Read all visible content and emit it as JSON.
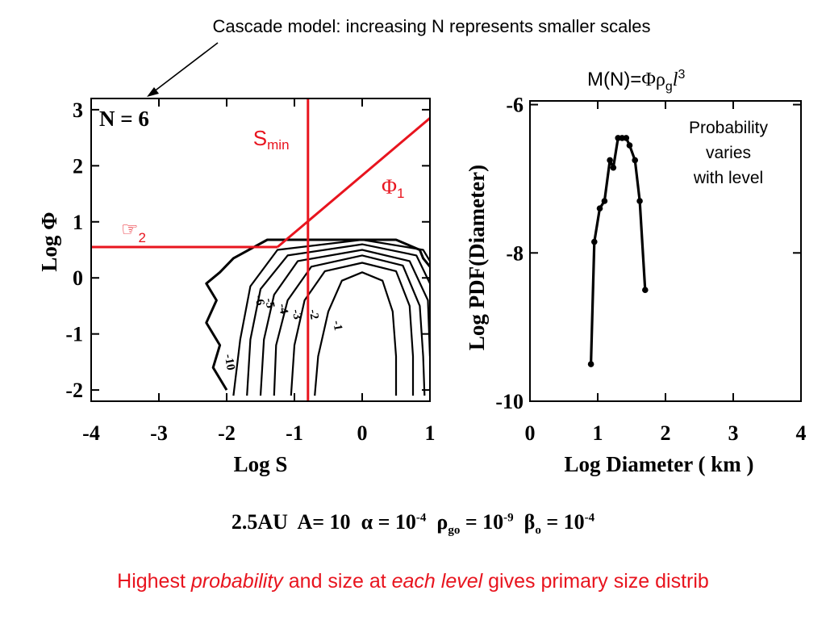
{
  "header": {
    "title": "Cascade model: increasing N represents smaller scales"
  },
  "formula": {
    "lhs": "M(N)=",
    "phi": "Φ",
    "rho": "ρ",
    "sub_g": "g",
    "ell": "l",
    "sup_3": "3"
  },
  "note": {
    "line1": "Probability",
    "line2": "varies",
    "line3": "with level"
  },
  "params": {
    "location": "2.5AU",
    "a_text": "A= 10",
    "alpha_text": "α = 10",
    "alpha_exp": "-4",
    "rho_sym": "ρ",
    "rho_sub": "go",
    "rho_text": "= 10",
    "rho_exp": "-9",
    "beta_sym": "β",
    "beta_sub": "o",
    "beta_text": "= 10",
    "beta_exp": "-4"
  },
  "conclusion": {
    "part1": "Highest ",
    "part2": "probability",
    "part3": " and size at ",
    "part4": "each level",
    "part5": " gives primary size distrib"
  },
  "chart_data": [
    {
      "type": "contour",
      "panel_label": "N =  6",
      "xlabel": "Log S",
      "ylabel": "Log Φ",
      "xlim": [
        -4,
        1
      ],
      "ylim": [
        -2.2,
        3.2
      ],
      "xticks": [
        "-4",
        "-3",
        "-2",
        "-1",
        "0",
        "1"
      ],
      "yticks": [
        "-2",
        "-1",
        "0",
        "1",
        "2",
        "3"
      ],
      "contour_labels": [
        "-1",
        "-2",
        "-3",
        "-4",
        "-5",
        "-6",
        "-7",
        "-10"
      ],
      "annotations": {
        "smin_label": "S",
        "smin_sub": "min",
        "phi1_label": "Φ",
        "phi1_sub": "1",
        "phi2_label": "☞",
        "phi2_sub": "2"
      },
      "overlay_lines": {
        "s_min": -0.8,
        "phi2_level": 0.55,
        "phi2_end_x": -1.25,
        "phi1_start": [
          -1.25,
          0.55
        ],
        "phi1_end": [
          1,
          2.85
        ]
      },
      "contours": [
        {
          "label": "-1",
          "points": [
            [
              -0.7,
              -2.1
            ],
            [
              -0.65,
              -1.4
            ],
            [
              -0.5,
              -0.6
            ],
            [
              -0.3,
              -0.05
            ],
            [
              0.0,
              0.1
            ],
            [
              0.3,
              -0.05
            ],
            [
              0.45,
              -0.6
            ],
            [
              0.5,
              -1.4
            ],
            [
              0.5,
              -2.1
            ]
          ]
        },
        {
          "label": "-2",
          "points": [
            [
              -1.05,
              -2.1
            ],
            [
              -1.0,
              -1.2
            ],
            [
              -0.85,
              -0.4
            ],
            [
              -0.55,
              0.12
            ],
            [
              0.0,
              0.27
            ],
            [
              0.5,
              0.12
            ],
            [
              0.7,
              -0.5
            ],
            [
              0.75,
              -1.4
            ],
            [
              0.75,
              -2.1
            ]
          ]
        },
        {
          "label": "-3",
          "points": [
            [
              -1.3,
              -2.1
            ],
            [
              -1.27,
              -1.2
            ],
            [
              -1.1,
              -0.4
            ],
            [
              -0.75,
              0.2
            ],
            [
              0.0,
              0.4
            ],
            [
              0.6,
              0.22
            ],
            [
              0.85,
              -0.5
            ],
            [
              0.9,
              -1.4
            ],
            [
              0.92,
              -2.1
            ]
          ]
        },
        {
          "label": "-4",
          "points": [
            [
              -1.5,
              -2.1
            ],
            [
              -1.45,
              -1.1
            ],
            [
              -1.3,
              -0.3
            ],
            [
              -0.95,
              0.3
            ],
            [
              0.0,
              0.5
            ],
            [
              0.7,
              0.3
            ],
            [
              0.97,
              -0.4
            ],
            [
              1.0,
              -1.4
            ]
          ]
        },
        {
          "label": "-5",
          "points": [
            [
              -1.7,
              -2.1
            ],
            [
              -1.65,
              -1.1
            ],
            [
              -1.5,
              -0.2
            ],
            [
              -1.1,
              0.4
            ],
            [
              0.0,
              0.6
            ],
            [
              0.8,
              0.4
            ],
            [
              1.0,
              -0.1
            ]
          ]
        },
        {
          "label": "-6",
          "points": [
            [
              -1.9,
              -2.1
            ],
            [
              -1.8,
              -1.1
            ],
            [
              -1.65,
              -0.15
            ],
            [
              -1.25,
              0.5
            ],
            [
              0.0,
              0.68
            ],
            [
              0.9,
              0.5
            ],
            [
              1.0,
              0.3
            ]
          ]
        },
        {
          "label": "-10",
          "points": [
            [
              -2.0,
              -2.0
            ],
            [
              -2.2,
              -1.6
            ],
            [
              -2.1,
              -1.2
            ],
            [
              -2.3,
              -0.8
            ],
            [
              -2.15,
              -0.4
            ],
            [
              -2.3,
              -0.1
            ],
            [
              -2.1,
              0.1
            ],
            [
              -1.9,
              0.35
            ],
            [
              -1.4,
              0.68
            ],
            [
              0.5,
              0.68
            ],
            [
              0.85,
              0.5
            ],
            [
              0.9,
              0.35
            ],
            [
              1.0,
              0.2
            ]
          ]
        }
      ]
    },
    {
      "type": "line",
      "xlabel": "Log Diameter ( km )",
      "ylabel": "Log PDF(Diameter)",
      "xlim": [
        0,
        4
      ],
      "ylim": [
        -10,
        -5.95
      ],
      "xticks": [
        "0",
        "1",
        "2",
        "3",
        "4"
      ],
      "yticks": [
        "-6",
        "-8",
        "-10"
      ],
      "series": [
        {
          "x": [
            0.9,
            0.95,
            1.03,
            1.1,
            1.18,
            1.23,
            1.3,
            1.36,
            1.42,
            1.47,
            1.55,
            1.62,
            1.7
          ],
          "y": [
            -9.5,
            -7.85,
            -7.4,
            -7.3,
            -6.75,
            -6.85,
            -6.45,
            -6.45,
            -6.45,
            -6.55,
            -6.75,
            -7.3,
            -8.5
          ]
        }
      ]
    }
  ]
}
